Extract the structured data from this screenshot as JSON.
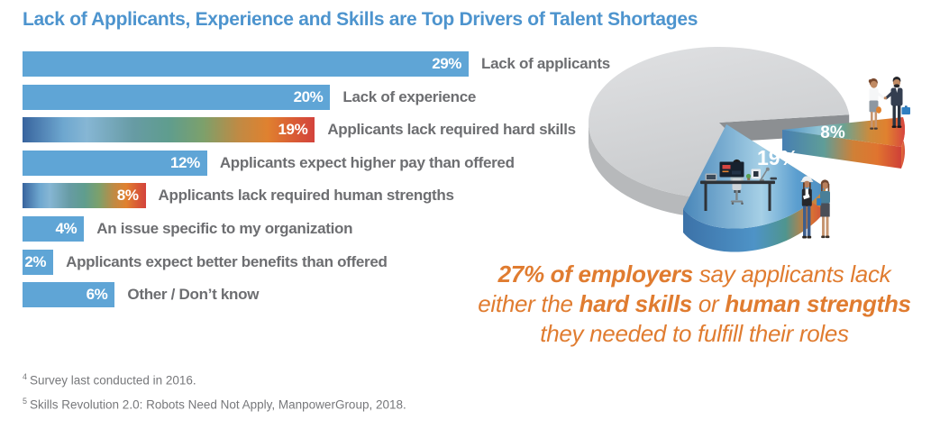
{
  "title": "Lack of Applicants, Experience and Skills are Top Drivers of Talent Shortages",
  "chart_data": [
    {
      "type": "bar",
      "orientation": "horizontal",
      "title": "Lack of Applicants, Experience and Skills are Top Drivers of Talent Shortages",
      "categories": [
        "Lack of applicants",
        "Lack of experience",
        "Applicants lack required hard skills",
        "Applicants expect higher pay than offered",
        "Applicants lack required human strengths",
        "An issue specific to my organization",
        "Applicants expect better benefits than offered",
        "Other / Don’t know"
      ],
      "values": [
        29,
        20,
        19,
        12,
        8,
        4,
        2,
        6
      ],
      "value_labels": [
        "29%",
        "20%",
        "19%",
        "12%",
        "8%",
        "4%",
        "2%",
        "6%"
      ],
      "xlim": [
        0,
        30
      ],
      "grid": false,
      "bar_style": {
        "default_color": "#5fa5d6",
        "gradient_indices": [
          2,
          4
        ],
        "gradient": [
          "#38649e",
          "#6ea7cf",
          "#86b6d4",
          "#679ba4",
          "#5f9d8e",
          "#7da06b",
          "#c08a44",
          "#e0812f",
          "#d95b35",
          "#d3433c"
        ]
      }
    },
    {
      "type": "pie",
      "style": "3d-exploded-illustration",
      "legend": "none",
      "slices": [
        {
          "label": "",
          "value": 73,
          "color": "#d5d7d8",
          "exploded": false
        },
        {
          "label": "19%",
          "value": 19,
          "color": "blue gradient",
          "exploded": true
        },
        {
          "label": "8%",
          "value": 8,
          "color": "blue-to-red gradient",
          "exploded": true
        }
      ]
    }
  ],
  "callout": {
    "line1_bold": "27% of employers",
    "line1_rest": " say applicants lack",
    "line2_pre": "either the ",
    "line2_bold1": "hard skills",
    "line2_mid": " or ",
    "line2_bold2": "human strengths",
    "line3": "they needed to fulfill their roles",
    "color": "#e07c30"
  },
  "footnotes": [
    {
      "sup": "4",
      "text": "Survey last conducted in 2016."
    },
    {
      "sup": "5",
      "text": "Skills Revolution 2.0: Robots Need Not Apply, ManpowerGroup, 2018."
    }
  ],
  "colors": {
    "title_blue": "#4d94ce",
    "bar_blue": "#5fa5d6",
    "label_gray": "#6d6e71",
    "footnote_gray": "#77787b",
    "callout_orange": "#e07c30"
  }
}
